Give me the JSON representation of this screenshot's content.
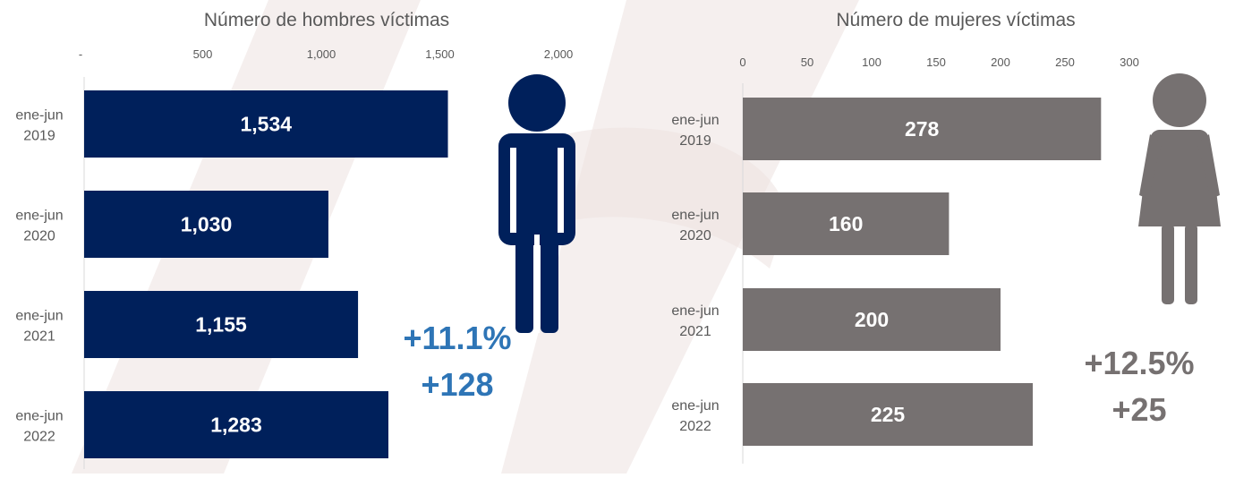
{
  "colors": {
    "men": "#00205b",
    "women": "#767171",
    "men_change": "#2e75b6",
    "women_change": "#767171",
    "watermark": "#ede2e0"
  },
  "icons": {
    "men": "man-icon",
    "women": "woman-icon"
  },
  "chart_data": [
    {
      "type": "bar",
      "orientation": "horizontal",
      "title": "Número de hombres víctimas",
      "categories": [
        [
          "ene-jun",
          "2019"
        ],
        [
          "ene-jun",
          "2020"
        ],
        [
          "ene-jun",
          "2021"
        ],
        [
          "ene-jun",
          "2022"
        ]
      ],
      "values": [
        1534,
        1030,
        1155,
        1283
      ],
      "data_labels": [
        "1,534",
        "1,030",
        "1,155",
        "1,283"
      ],
      "xlim": [
        0,
        2000
      ],
      "xticks": [
        0,
        500,
        1000,
        1500,
        2000
      ],
      "xtick_labels": [
        "-",
        "500",
        "1,000",
        "1,500",
        "2,000"
      ],
      "axis_position": "top",
      "grid": false,
      "legend": "none",
      "change_pct": "+11.1%",
      "change_abs": "+128"
    },
    {
      "type": "bar",
      "orientation": "horizontal",
      "title": "Número de mujeres víctimas",
      "categories": [
        [
          "ene-jun",
          "2019"
        ],
        [
          "ene-jun",
          "2020"
        ],
        [
          "ene-jun",
          "2021"
        ],
        [
          "ene-jun",
          "2022"
        ]
      ],
      "values": [
        278,
        160,
        200,
        225
      ],
      "data_labels": [
        "278",
        "160",
        "200",
        "225"
      ],
      "xlim": [
        0,
        300
      ],
      "xticks": [
        0,
        50,
        100,
        150,
        200,
        250,
        300
      ],
      "xtick_labels": [
        "0",
        "50",
        "100",
        "150",
        "200",
        "250",
        "300"
      ],
      "axis_position": "top",
      "grid": false,
      "legend": "none",
      "change_pct": "+12.5%",
      "change_abs": "+25"
    }
  ]
}
